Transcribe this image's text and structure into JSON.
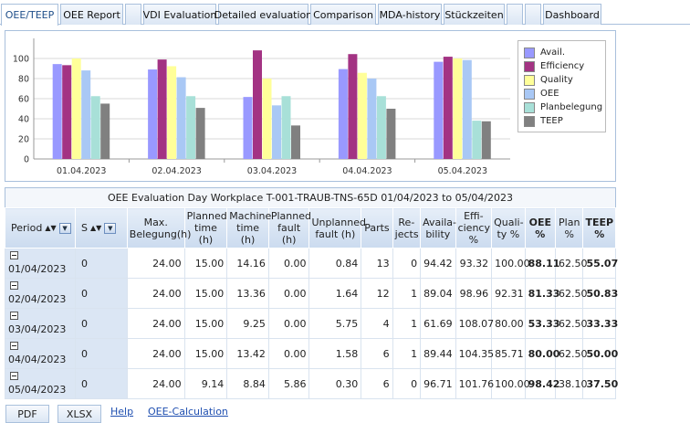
{
  "tabs": [
    "OEE/TEEP",
    "OEE Report",
    "",
    "VDI Evaluation",
    "Detailed evaluation",
    "Comparison",
    "MDA-history",
    "Stückzeiten",
    "",
    "",
    "Dashboard"
  ],
  "colors": {
    "avail": "#9999ff",
    "efficiency": "#a33383",
    "quality": "#ffff99",
    "oee": "#a9c8f5",
    "planbelegung": "#a8e0d8",
    "teep": "#808080"
  },
  "chart_data": {
    "type": "bar",
    "categories": [
      "01.04.2023",
      "02.04.2023",
      "03.04.2023",
      "04.04.2023",
      "05.04.2023"
    ],
    "ylim": [
      0,
      120
    ],
    "yticks": [
      0,
      20,
      40,
      60,
      80,
      100
    ],
    "grid": true,
    "legend_position": "right",
    "series": [
      {
        "name": "Avail.",
        "values": [
          94.42,
          89.04,
          61.69,
          89.44,
          96.71
        ]
      },
      {
        "name": "Efficiency",
        "values": [
          93.32,
          98.96,
          108.07,
          104.35,
          101.76
        ]
      },
      {
        "name": "Quality",
        "values": [
          100.0,
          92.31,
          80.0,
          85.71,
          100.0
        ]
      },
      {
        "name": "OEE",
        "values": [
          88.11,
          81.33,
          53.33,
          80.0,
          98.42
        ]
      },
      {
        "name": "Planbelegung",
        "values": [
          62.5,
          62.5,
          62.5,
          62.5,
          38.1
        ]
      },
      {
        "name": "TEEP",
        "values": [
          55.07,
          50.83,
          33.33,
          50.0,
          37.5
        ]
      }
    ]
  },
  "grid": {
    "title": "OEE Evaluation Day Workplace T-001-TRAUB-TNS-65D 01/04/2023 to 05/04/2023",
    "headers": {
      "period": "Period",
      "shift": "S",
      "max_belegung": "Max. Belegung(h)",
      "planned_time": "Planned time (h)",
      "machine_time": "Machine time (h)",
      "planned_fault": "Planned fault (h)",
      "unplanned_fault": "Unplanned fault (h)",
      "parts": "Parts",
      "rejects": "Re-jects",
      "availability": "Availa-bility",
      "efficiency": "Effi-ciency %",
      "quality": "Quali-ty %",
      "oee": "OEE %",
      "plan": "Plan %",
      "teep": "TEEP %"
    },
    "rows": [
      {
        "period": "01/04/2023",
        "shift": "0",
        "max_belegung": "24.00",
        "planned_time": "15.00",
        "machine_time": "14.16",
        "planned_fault": "0.00",
        "unplanned_fault": "0.84",
        "parts": "13",
        "rejects": "0",
        "availability": "94.42",
        "efficiency": "93.32",
        "quality": "100.00",
        "oee": "88.11",
        "plan": "62.50",
        "teep": "55.07"
      },
      {
        "period": "02/04/2023",
        "shift": "0",
        "max_belegung": "24.00",
        "planned_time": "15.00",
        "machine_time": "13.36",
        "planned_fault": "0.00",
        "unplanned_fault": "1.64",
        "parts": "12",
        "rejects": "1",
        "availability": "89.04",
        "efficiency": "98.96",
        "quality": "92.31",
        "oee": "81.33",
        "plan": "62.50",
        "teep": "50.83"
      },
      {
        "period": "03/04/2023",
        "shift": "0",
        "max_belegung": "24.00",
        "planned_time": "15.00",
        "machine_time": "9.25",
        "planned_fault": "0.00",
        "unplanned_fault": "5.75",
        "parts": "4",
        "rejects": "1",
        "availability": "61.69",
        "efficiency": "108.07",
        "quality": "80.00",
        "oee": "53.33",
        "plan": "62.50",
        "teep": "33.33"
      },
      {
        "period": "04/04/2023",
        "shift": "0",
        "max_belegung": "24.00",
        "planned_time": "15.00",
        "machine_time": "13.42",
        "planned_fault": "0.00",
        "unplanned_fault": "1.58",
        "parts": "6",
        "rejects": "1",
        "availability": "89.44",
        "efficiency": "104.35",
        "quality": "85.71",
        "oee": "80.00",
        "plan": "62.50",
        "teep": "50.00"
      },
      {
        "period": "05/04/2023",
        "shift": "0",
        "max_belegung": "24.00",
        "planned_time": "9.14",
        "machine_time": "8.84",
        "planned_fault": "5.86",
        "unplanned_fault": "0.30",
        "parts": "6",
        "rejects": "0",
        "availability": "96.71",
        "efficiency": "101.76",
        "quality": "100.00",
        "oee": "98.42",
        "plan": "38.10",
        "teep": "37.50"
      }
    ]
  },
  "footer": {
    "pdf": "PDF",
    "xlsx": "XLSX",
    "help": "Help",
    "oee_calc": "OEE-Calculation"
  },
  "icons": {
    "sort": "sort-updown-icon",
    "filter": "filter-dropdown-icon",
    "collapse": "collapse-minus-icon"
  }
}
